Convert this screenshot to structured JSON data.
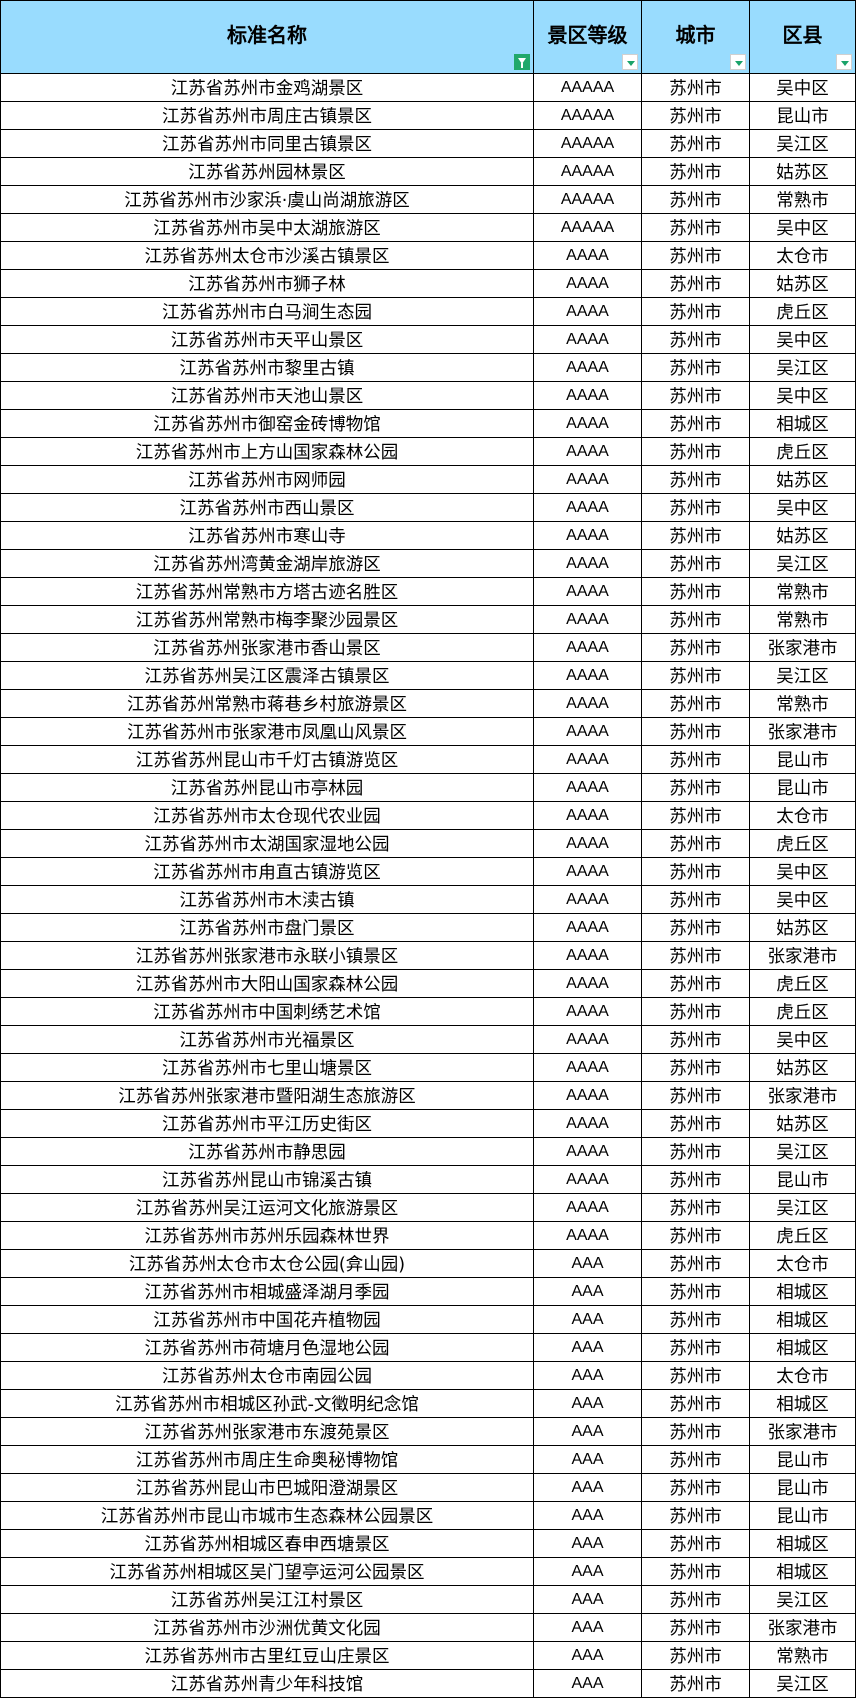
{
  "headers": {
    "name": "标准名称",
    "grade": "景区等级",
    "city": "城市",
    "district": "区县"
  },
  "filter_icons": {
    "name": "filter-active-icon",
    "grade": "dropdown-arrow-icon",
    "city": "dropdown-arrow-icon",
    "district": "dropdown-arrow-icon"
  },
  "colors": {
    "header_bg": "#99dcfe",
    "filter_active": "#20a86b"
  },
  "rows": [
    [
      "江苏省苏州市金鸡湖景区",
      "AAAAA",
      "苏州市",
      "吴中区"
    ],
    [
      "江苏省苏州市周庄古镇景区",
      "AAAAA",
      "苏州市",
      "昆山市"
    ],
    [
      "江苏省苏州市同里古镇景区",
      "AAAAA",
      "苏州市",
      "吴江区"
    ],
    [
      "江苏省苏州园林景区",
      "AAAAA",
      "苏州市",
      "姑苏区"
    ],
    [
      "江苏省苏州市沙家浜·虞山尚湖旅游区",
      "AAAAA",
      "苏州市",
      "常熟市"
    ],
    [
      "江苏省苏州市吴中太湖旅游区",
      "AAAAA",
      "苏州市",
      "吴中区"
    ],
    [
      "江苏省苏州太仓市沙溪古镇景区",
      "AAAA",
      "苏州市",
      "太仓市"
    ],
    [
      "江苏省苏州市狮子林",
      "AAAA",
      "苏州市",
      "姑苏区"
    ],
    [
      "江苏省苏州市白马涧生态园",
      "AAAA",
      "苏州市",
      "虎丘区"
    ],
    [
      "江苏省苏州市天平山景区",
      "AAAA",
      "苏州市",
      "吴中区"
    ],
    [
      "江苏省苏州市黎里古镇",
      "AAAA",
      "苏州市",
      "吴江区"
    ],
    [
      "江苏省苏州市天池山景区",
      "AAAA",
      "苏州市",
      "吴中区"
    ],
    [
      "江苏省苏州市御窑金砖博物馆",
      "AAAA",
      "苏州市",
      "相城区"
    ],
    [
      "江苏省苏州市上方山国家森林公园",
      "AAAA",
      "苏州市",
      "虎丘区"
    ],
    [
      "江苏省苏州市网师园",
      "AAAA",
      "苏州市",
      "姑苏区"
    ],
    [
      "江苏省苏州市西山景区",
      "AAAA",
      "苏州市",
      "吴中区"
    ],
    [
      "江苏省苏州市寒山寺",
      "AAAA",
      "苏州市",
      "姑苏区"
    ],
    [
      "江苏省苏州湾黄金湖岸旅游区",
      "AAAA",
      "苏州市",
      "吴江区"
    ],
    [
      "江苏省苏州常熟市方塔古迹名胜区",
      "AAAA",
      "苏州市",
      "常熟市"
    ],
    [
      "江苏省苏州常熟市梅李聚沙园景区",
      "AAAA",
      "苏州市",
      "常熟市"
    ],
    [
      "江苏省苏州张家港市香山景区",
      "AAAA",
      "苏州市",
      "张家港市"
    ],
    [
      "江苏省苏州吴江区震泽古镇景区",
      "AAAA",
      "苏州市",
      "吴江区"
    ],
    [
      "江苏省苏州常熟市蒋巷乡村旅游景区",
      "AAAA",
      "苏州市",
      "常熟市"
    ],
    [
      "江苏省苏州市张家港市凤凰山风景区",
      "AAAA",
      "苏州市",
      "张家港市"
    ],
    [
      "江苏省苏州昆山市千灯古镇游览区",
      "AAAA",
      "苏州市",
      "昆山市"
    ],
    [
      "江苏省苏州昆山市亭林园",
      "AAAA",
      "苏州市",
      "昆山市"
    ],
    [
      "江苏省苏州市太仓现代农业园",
      "AAAA",
      "苏州市",
      "太仓市"
    ],
    [
      "江苏省苏州市太湖国家湿地公园",
      "AAAA",
      "苏州市",
      "虎丘区"
    ],
    [
      "江苏省苏州市甪直古镇游览区",
      "AAAA",
      "苏州市",
      "吴中区"
    ],
    [
      "江苏省苏州市木渎古镇",
      "AAAA",
      "苏州市",
      "吴中区"
    ],
    [
      "江苏省苏州市盘门景区",
      "AAAA",
      "苏州市",
      "姑苏区"
    ],
    [
      "江苏省苏州张家港市永联小镇景区",
      "AAAA",
      "苏州市",
      "张家港市"
    ],
    [
      "江苏省苏州市大阳山国家森林公园",
      "AAAA",
      "苏州市",
      "虎丘区"
    ],
    [
      "江苏省苏州市中国刺绣艺术馆",
      "AAAA",
      "苏州市",
      "虎丘区"
    ],
    [
      "江苏省苏州市光福景区",
      "AAAA",
      "苏州市",
      "吴中区"
    ],
    [
      "江苏省苏州市七里山塘景区",
      "AAAA",
      "苏州市",
      "姑苏区"
    ],
    [
      "江苏省苏州张家港市暨阳湖生态旅游区",
      "AAAA",
      "苏州市",
      "张家港市"
    ],
    [
      "江苏省苏州市平江历史街区",
      "AAAA",
      "苏州市",
      "姑苏区"
    ],
    [
      "江苏省苏州市静思园",
      "AAAA",
      "苏州市",
      "吴江区"
    ],
    [
      "江苏省苏州昆山市锦溪古镇",
      "AAAA",
      "苏州市",
      "昆山市"
    ],
    [
      "江苏省苏州吴江运河文化旅游景区",
      "AAAA",
      "苏州市",
      "吴江区"
    ],
    [
      "江苏省苏州市苏州乐园森林世界",
      "AAAA",
      "苏州市",
      "虎丘区"
    ],
    [
      "江苏省苏州太仓市太仓公园(弇山园)",
      "AAA",
      "苏州市",
      "太仓市"
    ],
    [
      "江苏省苏州市相城盛泽湖月季园",
      "AAA",
      "苏州市",
      "相城区"
    ],
    [
      "江苏省苏州市中国花卉植物园",
      "AAA",
      "苏州市",
      "相城区"
    ],
    [
      "江苏省苏州市荷塘月色湿地公园",
      "AAA",
      "苏州市",
      "相城区"
    ],
    [
      "江苏省苏州太仓市南园公园",
      "AAA",
      "苏州市",
      "太仓市"
    ],
    [
      "江苏省苏州市相城区孙武-文徵明纪念馆",
      "AAA",
      "苏州市",
      "相城区"
    ],
    [
      "江苏省苏州张家港市东渡苑景区",
      "AAA",
      "苏州市",
      "张家港市"
    ],
    [
      "江苏省苏州市周庄生命奥秘博物馆",
      "AAA",
      "苏州市",
      "昆山市"
    ],
    [
      "江苏省苏州昆山市巴城阳澄湖景区",
      "AAA",
      "苏州市",
      "昆山市"
    ],
    [
      "江苏省苏州市昆山市城市生态森林公园景区",
      "AAA",
      "苏州市",
      "昆山市"
    ],
    [
      "江苏省苏州相城区春申西塘景区",
      "AAA",
      "苏州市",
      "相城区"
    ],
    [
      "江苏省苏州相城区吴门望亭运河公园景区",
      "AAA",
      "苏州市",
      "相城区"
    ],
    [
      "江苏省苏州吴江江村景区",
      "AAA",
      "苏州市",
      "吴江区"
    ],
    [
      "江苏省苏州市沙洲优黄文化园",
      "AAA",
      "苏州市",
      "张家港市"
    ],
    [
      "江苏省苏州市古里红豆山庄景区",
      "AAA",
      "苏州市",
      "常熟市"
    ],
    [
      "江苏省苏州青少年科技馆",
      "AAA",
      "苏州市",
      "吴江区"
    ]
  ]
}
